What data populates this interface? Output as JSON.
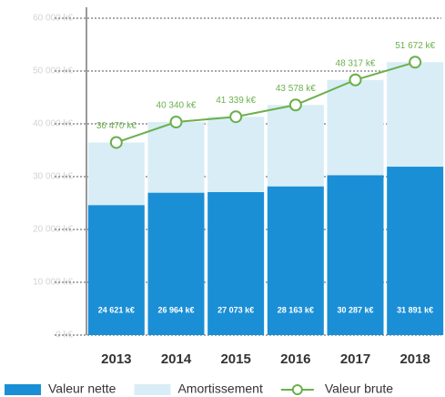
{
  "chart_data": {
    "type": "bar",
    "stacked": true,
    "categories": [
      "2013",
      "2014",
      "2015",
      "2016",
      "2017",
      "2018"
    ],
    "series": [
      {
        "name": "Valeur nette",
        "color": "#1a8fd6",
        "values": [
          24621,
          26964,
          27073,
          28163,
          30287,
          31891
        ],
        "value_labels": [
          "24 621 k€",
          "26 964 k€",
          "27 073 k€",
          "28 163 k€",
          "30 287 k€",
          "31 891 k€"
        ]
      },
      {
        "name": "Amortissement",
        "color": "#d9edf6",
        "values": [
          11849,
          13376,
          14266,
          15415,
          18030,
          19781
        ]
      },
      {
        "name": "Valeur brute",
        "type": "line",
        "color": "#6ab04c",
        "values": [
          36470,
          40340,
          41339,
          43578,
          48317,
          51672
        ],
        "value_labels": [
          "36 470 k€",
          "40 340 k€",
          "41 339 k€",
          "43 578 k€",
          "48 317 k€",
          "51 672 k€"
        ]
      }
    ],
    "ylim": [
      0,
      60000
    ],
    "yticks": [
      {
        "value": 0,
        "label": "0 k€"
      },
      {
        "value": 10000,
        "label": "10 000 k€"
      },
      {
        "value": 20000,
        "label": "20 000 k€"
      },
      {
        "value": 30000,
        "label": "30 000 k€"
      },
      {
        "value": 40000,
        "label": "40 000 k€"
      },
      {
        "value": 50000,
        "label": "50 000 k€"
      },
      {
        "value": 60000,
        "label": "60 000 k€"
      }
    ],
    "grid": true,
    "legend": "bottom"
  }
}
